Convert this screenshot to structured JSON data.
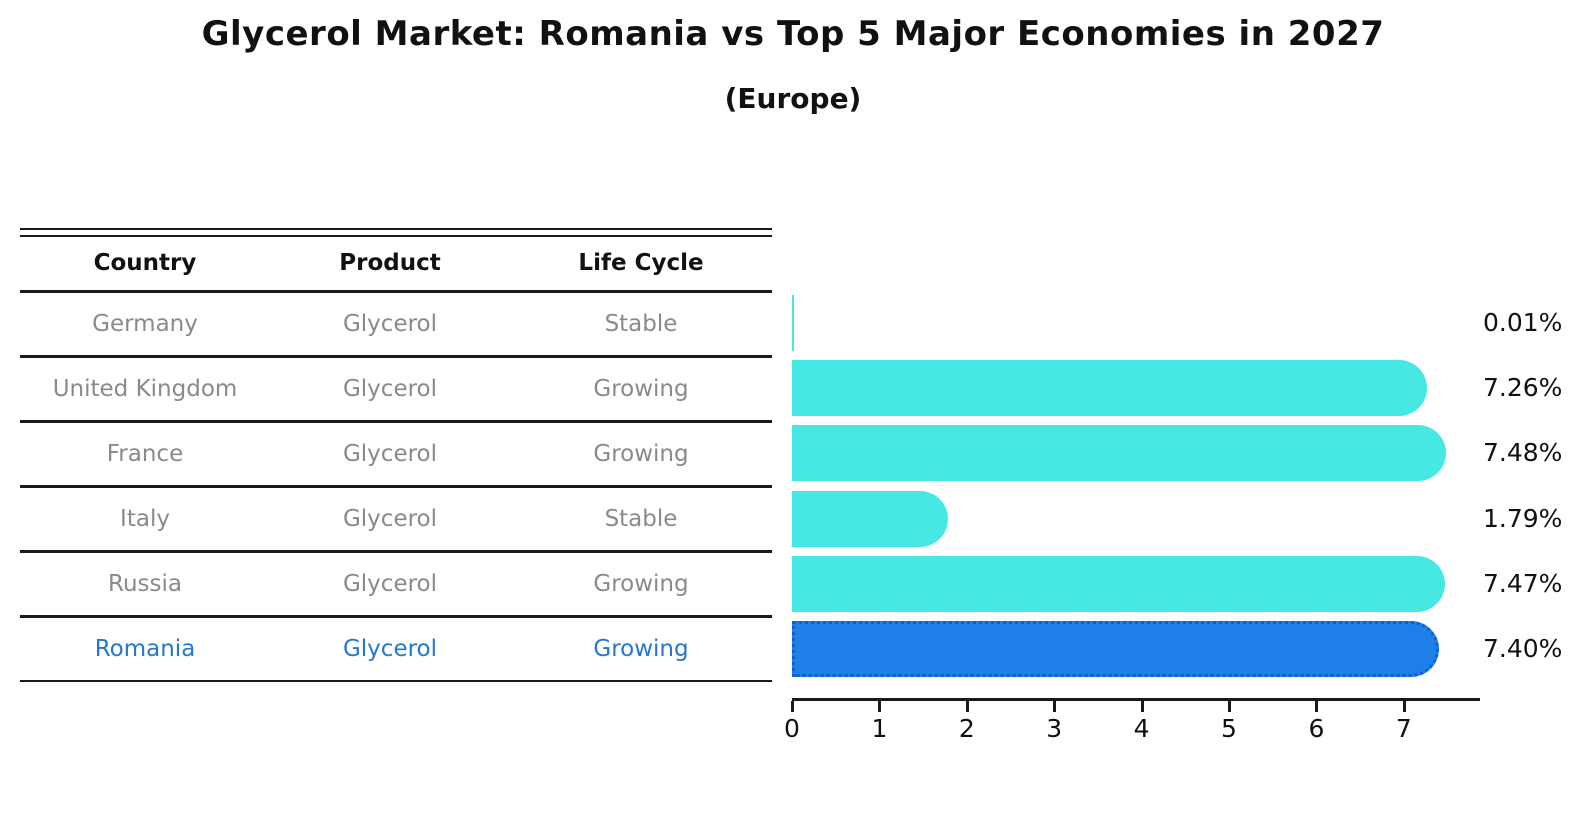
{
  "title": "Glycerol Market: Romania vs Top 5 Major Economies in 2027",
  "subtitle": "(Europe)",
  "table": {
    "headers": {
      "country": "Country",
      "product": "Product",
      "life_cycle": "Life Cycle"
    },
    "rows": [
      {
        "country": "Germany",
        "product": "Glycerol",
        "life_cycle": "Stable"
      },
      {
        "country": "United Kingdom",
        "product": "Glycerol",
        "life_cycle": "Growing"
      },
      {
        "country": "France",
        "product": "Glycerol",
        "life_cycle": "Growing"
      },
      {
        "country": "Italy",
        "product": "Glycerol",
        "life_cycle": "Stable"
      },
      {
        "country": "Russia",
        "product": "Glycerol",
        "life_cycle": "Growing"
      },
      {
        "country": "Romania",
        "product": "Glycerol",
        "life_cycle": "Growing"
      }
    ],
    "highlighted_row": "Romania"
  },
  "chart_data": {
    "type": "bar",
    "orientation": "horizontal",
    "title": "Glycerol Market: Romania vs Top 5 Major Economies in 2027",
    "subtitle": "(Europe)",
    "categories": [
      "Germany",
      "United Kingdom",
      "France",
      "Italy",
      "Russia",
      "Romania"
    ],
    "values": [
      0.01,
      7.26,
      7.48,
      1.79,
      7.47,
      7.4
    ],
    "value_labels": [
      "0.01%",
      "7.26%",
      "7.48%",
      "1.79%",
      "7.47%",
      "7.40%"
    ],
    "x_ticks": [
      "0",
      "1",
      "2",
      "3",
      "4",
      "5",
      "6",
      "7"
    ],
    "xlim": [
      0,
      7.85
    ],
    "grid": false,
    "legend": false,
    "highlight_index": 5
  },
  "colors": {
    "background": "#ffffff",
    "header_text": "#111111",
    "row_text": "#8a8a8a",
    "highlight_text": "#2478cd",
    "bar": "#47e8e4",
    "highlight_bar": "#1f7fe8",
    "highlight_bar_border": "#0f5fd0",
    "axis": "#1a1a1a"
  }
}
